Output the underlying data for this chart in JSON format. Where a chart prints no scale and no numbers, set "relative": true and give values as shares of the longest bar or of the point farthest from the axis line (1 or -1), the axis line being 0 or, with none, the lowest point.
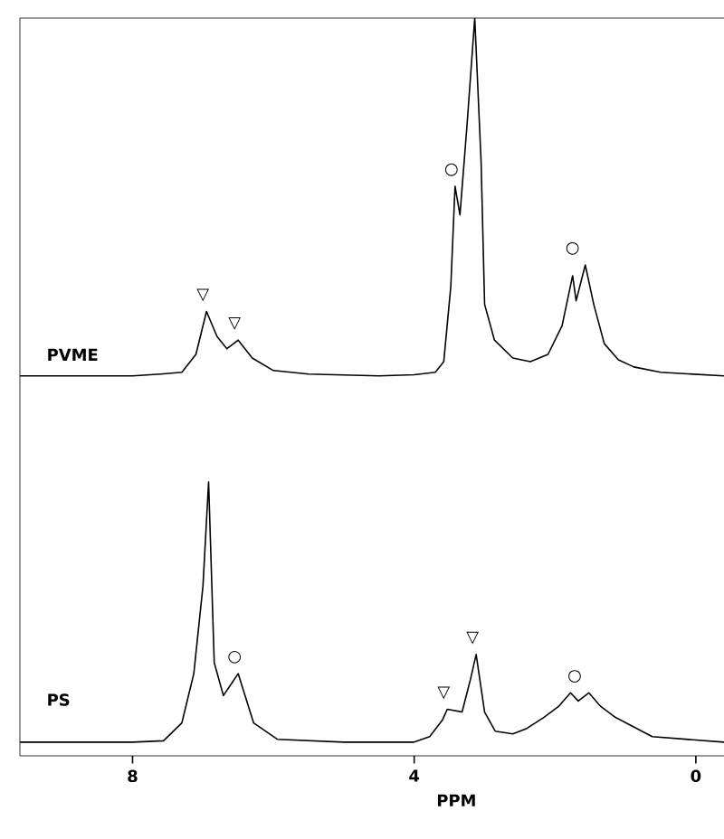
{
  "chart_data": [
    {
      "type": "line",
      "relative": true,
      "tick_labels": false,
      "xlim": [
        9.6,
        -0.4
      ],
      "series": [
        {
          "name": "PVME",
          "color": "#000000",
          "x": [
            9.6,
            8.0,
            7.6,
            7.3,
            7.1,
            6.95,
            6.8,
            6.66,
            6.5,
            6.3,
            6.0,
            5.5,
            4.5,
            4.0,
            3.7,
            3.58,
            3.48,
            3.42,
            3.35,
            3.25,
            3.14,
            3.05,
            3.0,
            2.86,
            2.6,
            2.35,
            2.1,
            1.9,
            1.75,
            1.7,
            1.57,
            1.45,
            1.3,
            1.1,
            0.88,
            0.5,
            -0.4
          ],
          "values": [
            0,
            0,
            0.005,
            0.01,
            0.06,
            0.18,
            0.11,
            0.076,
            0.1,
            0.05,
            0.015,
            0.005,
            0,
            0.003,
            0.01,
            0.04,
            0.25,
            0.53,
            0.45,
            0.7,
            1,
            0.6,
            0.2,
            0.1,
            0.05,
            0.04,
            0.06,
            0.14,
            0.28,
            0.21,
            0.31,
            0.2,
            0.09,
            0.045,
            0.025,
            0.01,
            0
          ]
        }
      ],
      "annotations": [
        {
          "text": "▽",
          "x": 6.95,
          "y": 0.18
        },
        {
          "text": "▽",
          "x": 6.5,
          "y": 0.1
        },
        {
          "text": "○",
          "x": 3.42,
          "y": 0.53
        },
        {
          "text": "○",
          "x": 1.7,
          "y": 0.31
        }
      ]
    },
    {
      "type": "line",
      "relative": true,
      "tick_labels": "x",
      "xlim": [
        9.6,
        -0.4
      ],
      "xticks": [
        8,
        4,
        0
      ],
      "xlabel": "PPM",
      "series": [
        {
          "name": "PS",
          "color": "#000000",
          "x": [
            9.6,
            8.0,
            7.56,
            7.3,
            7.13,
            7.0,
            6.92,
            6.84,
            6.71,
            6.5,
            6.28,
            5.94,
            5.0,
            4.0,
            3.78,
            3.6,
            3.53,
            3.32,
            3.2,
            3.12,
            3.0,
            2.85,
            2.6,
            2.4,
            2.16,
            1.95,
            1.78,
            1.67,
            1.52,
            1.35,
            1.14,
            0.62,
            -0.4
          ],
          "values": [
            0.05,
            0.05,
            0.055,
            0.12,
            0.3,
            0.62,
            1.0,
            0.34,
            0.22,
            0.3,
            0.12,
            0.06,
            0.05,
            0.05,
            0.07,
            0.13,
            0.17,
            0.16,
            0.28,
            0.37,
            0.16,
            0.09,
            0.08,
            0.1,
            0.14,
            0.18,
            0.23,
            0.2,
            0.23,
            0.18,
            0.14,
            0.07,
            0.05
          ]
        }
      ],
      "annotations": [
        {
          "text": "○",
          "x": 6.5,
          "y": 0.3
        },
        {
          "text": "▽",
          "x": 3.53,
          "y": 0.17
        },
        {
          "text": "▽",
          "x": 3.12,
          "y": 0.37
        },
        {
          "text": "○",
          "x": 1.67,
          "y": 0.23
        }
      ]
    }
  ]
}
